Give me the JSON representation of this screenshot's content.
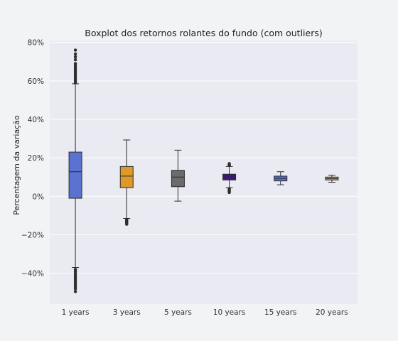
{
  "chart_data": {
    "type": "boxplot",
    "title": "Boxplot dos retornos rolantes do fundo (com outliers)",
    "xlabel": "",
    "ylabel": "Percentagem da variação",
    "ylim": [
      -56,
      81
    ],
    "yticks": [
      -40,
      -20,
      0,
      20,
      40,
      60,
      80
    ],
    "ytick_labels": [
      "−40%",
      "−20%",
      "0%",
      "20%",
      "40%",
      "60%",
      "80%"
    ],
    "grid": true,
    "categories": [
      "1 years",
      "3 years",
      "5 years",
      "10 years",
      "15 years",
      "20 years"
    ],
    "boxes": [
      {
        "category": "1 years",
        "whisker_low": -37,
        "q1": -1,
        "median": 12.8,
        "q3": 23,
        "whisker_high": 58.5,
        "color": "#5a72d0",
        "outliers": [
          -38,
          -39,
          -40,
          -41,
          -42,
          -43,
          -44,
          -45,
          -46,
          -47,
          -48,
          -49.5,
          59,
          60,
          61,
          62,
          63,
          64,
          65,
          66,
          67,
          68,
          69,
          71,
          72.5,
          74,
          76
        ]
      },
      {
        "category": "3 years",
        "whisker_low": -11.5,
        "q1": 4.5,
        "median": 10.5,
        "q3": 15.5,
        "whisker_high": 29.3,
        "color": "#dd9a2a",
        "outliers": [
          -12,
          -12.5,
          -13,
          -13.5,
          -14,
          -14.5
        ]
      },
      {
        "category": "5 years",
        "whisker_low": -2.5,
        "q1": 5,
        "median": 10,
        "q3": 13.5,
        "whisker_high": 24,
        "color": "#6b6b6b",
        "outliers": []
      },
      {
        "category": "10 years",
        "whisker_low": 4.5,
        "q1": 8.5,
        "median": 9.8,
        "q3": 11.5,
        "whisker_high": 15.5,
        "color": "#3d1a72",
        "outliers": [
          2,
          2.5,
          3,
          3.5,
          4,
          16,
          16.5,
          17
        ]
      },
      {
        "category": "15 years",
        "whisker_low": 6,
        "q1": 8,
        "median": 9.3,
        "q3": 10.5,
        "whisker_high": 12.8,
        "color": "#5570c8",
        "outliers": []
      },
      {
        "category": "20 years",
        "whisker_low": 7.3,
        "q1": 8.5,
        "median": 9.2,
        "q3": 10,
        "whisker_high": 11,
        "color": "#dd9a2a",
        "outliers": []
      }
    ]
  }
}
